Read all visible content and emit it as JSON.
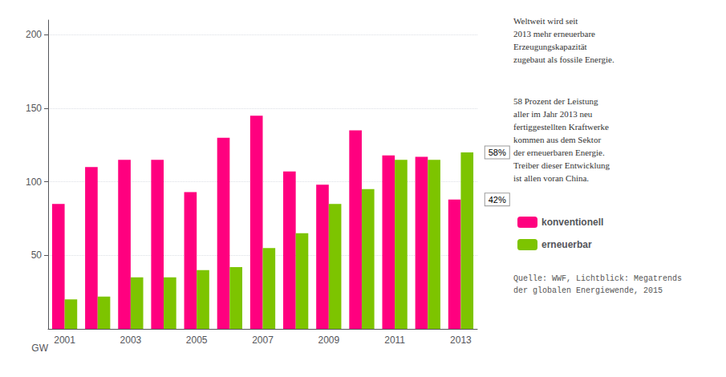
{
  "chart_data": {
    "type": "bar",
    "categories": [
      "2001",
      null,
      "2003",
      null,
      "2005",
      null,
      "2007",
      null,
      "2009",
      null,
      "2011",
      null,
      "2013"
    ],
    "series": [
      {
        "name": "konventionell",
        "color": "#FF007F",
        "values": [
          85,
          110,
          115,
          115,
          93,
          130,
          145,
          107,
          98,
          135,
          118,
          117,
          88
        ]
      },
      {
        "name": "erneuerbar",
        "color": "#7DC400",
        "values": [
          20,
          22,
          35,
          35,
          40,
          42,
          55,
          65,
          85,
          95,
          115,
          115,
          120
        ]
      }
    ],
    "ylabel": "GW",
    "ylim": [
      0,
      210
    ],
    "yticks": [
      50,
      100,
      150,
      200
    ],
    "grid": true,
    "legend": "right",
    "annotations": [
      {
        "text": "58%",
        "x": "2013",
        "y": 120
      },
      {
        "text": "42%",
        "x": "2013",
        "y": 88
      }
    ],
    "notes": [
      "Weltweit wird seit\n2013 mehr erneuerbare\nErzeugungskapazität\nzugebaut als fossile Energie.",
      "58 Prozent der Leistung\naller im Jahr 2013 neu\nfertiggestellten Kraftwerke\nkommen aus dem Sektor\nder erneuerbaren Energie.\nTreiber dieser Entwicklung\nist allen voran China."
    ],
    "source": "Quelle: WWF, Lichtblick: Megatrends\nder globalen Energiewende, 2015"
  }
}
